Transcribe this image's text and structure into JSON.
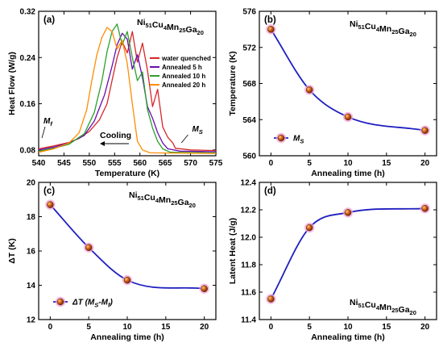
{
  "chart_data": [
    {
      "type": "line",
      "panel_label": "(a)",
      "formula": {
        "base": [
          "Ni",
          "Cu",
          "Mn",
          "Ga"
        ],
        "subs": [
          "51",
          "4",
          "25",
          "20"
        ]
      },
      "xlabel": "Temperature (K)",
      "ylabel": "Heat Flow (W/g)",
      "xlim": [
        540,
        575
      ],
      "ylim": [
        0.07,
        0.32
      ],
      "xticks": [
        "540",
        "545",
        "550",
        "555",
        "560",
        "565",
        "570",
        "575"
      ],
      "yticks": [
        "0.08",
        "0.16",
        "0.24",
        "0.32"
      ],
      "legend_position": "right",
      "annotations": {
        "mf": "M",
        "mf_sub": "f",
        "ms": "M",
        "ms_sub": "S",
        "cooling": "Cooling"
      },
      "series": [
        {
          "name": "water quenched",
          "color": "#d62728",
          "x": [
            540,
            543,
            546,
            548,
            550,
            552,
            553.5,
            554.5,
            555.5,
            556.5,
            557.5,
            558.5,
            559.5,
            560.5,
            561.5,
            562.5,
            563.5,
            564.5,
            565.5,
            566.5,
            567,
            570,
            575
          ],
          "y": [
            0.082,
            0.087,
            0.093,
            0.1,
            0.112,
            0.132,
            0.16,
            0.2,
            0.24,
            0.268,
            0.248,
            0.285,
            0.232,
            0.265,
            0.218,
            0.155,
            0.185,
            0.12,
            0.102,
            0.092,
            0.083,
            0.08,
            0.079
          ]
        },
        {
          "name": "Annealed 5 h",
          "color": "#6a0dad",
          "x": [
            540,
            543,
            546,
            549,
            551,
            553,
            554.5,
            555.5,
            556.5,
            557.5,
            558.5,
            559.5,
            560.5,
            561.5,
            562.5,
            563.5,
            564.5,
            565.5,
            568,
            575
          ],
          "y": [
            0.08,
            0.085,
            0.092,
            0.105,
            0.13,
            0.175,
            0.225,
            0.262,
            0.282,
            0.272,
            0.22,
            0.245,
            0.205,
            0.155,
            0.135,
            0.11,
            0.092,
            0.082,
            0.078,
            0.077
          ]
        },
        {
          "name": "Annealed 10 h",
          "color": "#2ca02c",
          "x": [
            540,
            543,
            546,
            549,
            551,
            552.5,
            553.5,
            554.5,
            555.5,
            556.5,
            557.5,
            558.5,
            559.5,
            560.5,
            561.5,
            562.5,
            563.5,
            564.5,
            566,
            575
          ],
          "y": [
            0.078,
            0.083,
            0.09,
            0.108,
            0.145,
            0.2,
            0.25,
            0.285,
            0.298,
            0.262,
            0.285,
            0.24,
            0.2,
            0.215,
            0.15,
            0.118,
            0.095,
            0.082,
            0.076,
            0.075
          ]
        },
        {
          "name": "Annealed 20 h",
          "color": "#ff8c00",
          "x": [
            540,
            543,
            546,
            548,
            549.5,
            550.5,
            551.5,
            552.5,
            553.5,
            554.5,
            555.5,
            556.5,
            557.5,
            558.5,
            559.5,
            560.5,
            562,
            575
          ],
          "y": [
            0.076,
            0.082,
            0.092,
            0.11,
            0.15,
            0.2,
            0.245,
            0.275,
            0.292,
            0.285,
            0.255,
            0.27,
            0.23,
            0.16,
            0.095,
            0.08,
            0.075,
            0.074
          ]
        }
      ]
    },
    {
      "type": "line",
      "panel_label": "(b)",
      "formula": {
        "base": [
          "Ni",
          "Cu",
          "Mn",
          "Ga"
        ],
        "subs": [
          "51",
          "4",
          "25",
          "20"
        ]
      },
      "xlabel": "Annealing time (h)",
      "ylabel": "Temperature (K)",
      "xlim": [
        -1.5,
        21.5
      ],
      "ylim": [
        560,
        576
      ],
      "xticks": [
        "0",
        "5",
        "10",
        "15",
        "20"
      ],
      "yticks": [
        "560",
        "564",
        "568",
        "572",
        "576"
      ],
      "legend_position": "bottom-left",
      "series": [
        {
          "name": "M",
          "name_sub": "S",
          "x": [
            0,
            5,
            10,
            20
          ],
          "y": [
            574.0,
            567.3,
            564.3,
            562.8
          ]
        }
      ]
    },
    {
      "type": "line",
      "panel_label": "(c)",
      "formula": {
        "base": [
          "Ni",
          "Cu",
          "Mn",
          "Ga"
        ],
        "subs": [
          "51",
          "4",
          "25",
          "20"
        ]
      },
      "xlabel": "Annealing time (h)",
      "ylabel": "ΔT (K)",
      "xlim": [
        -1.5,
        21.5
      ],
      "ylim": [
        12,
        20
      ],
      "xticks": [
        "0",
        "5",
        "10",
        "15",
        "20"
      ],
      "yticks": [
        "12",
        "14",
        "16",
        "18",
        "20"
      ],
      "legend_position": "bottom-left",
      "series": [
        {
          "name": "ΔT (M",
          "name_sub1": "S",
          "name_mid": "-M",
          "name_sub2": "f",
          "name_end": ")",
          "x": [
            0,
            5,
            10,
            20
          ],
          "y": [
            18.7,
            16.2,
            14.3,
            13.8
          ]
        }
      ]
    },
    {
      "type": "line",
      "panel_label": "(d)",
      "formula": {
        "base": [
          "Ni",
          "Cu",
          "Mn",
          "Ga"
        ],
        "subs": [
          "51",
          "4",
          "25",
          "20"
        ]
      },
      "xlabel": "Annealing time (h)",
      "ylabel": "Latent Heat (J/g)",
      "xlim": [
        -1.5,
        21.5
      ],
      "ylim": [
        11.4,
        12.4
      ],
      "xticks": [
        "0",
        "5",
        "10",
        "15",
        "20"
      ],
      "yticks": [
        "11.4",
        "11.6",
        "11.8",
        "12.0",
        "12.2",
        "12.4"
      ],
      "series": [
        {
          "x": [
            0,
            5,
            10,
            20
          ],
          "y": [
            11.55,
            12.07,
            12.18,
            12.21
          ]
        }
      ]
    }
  ]
}
